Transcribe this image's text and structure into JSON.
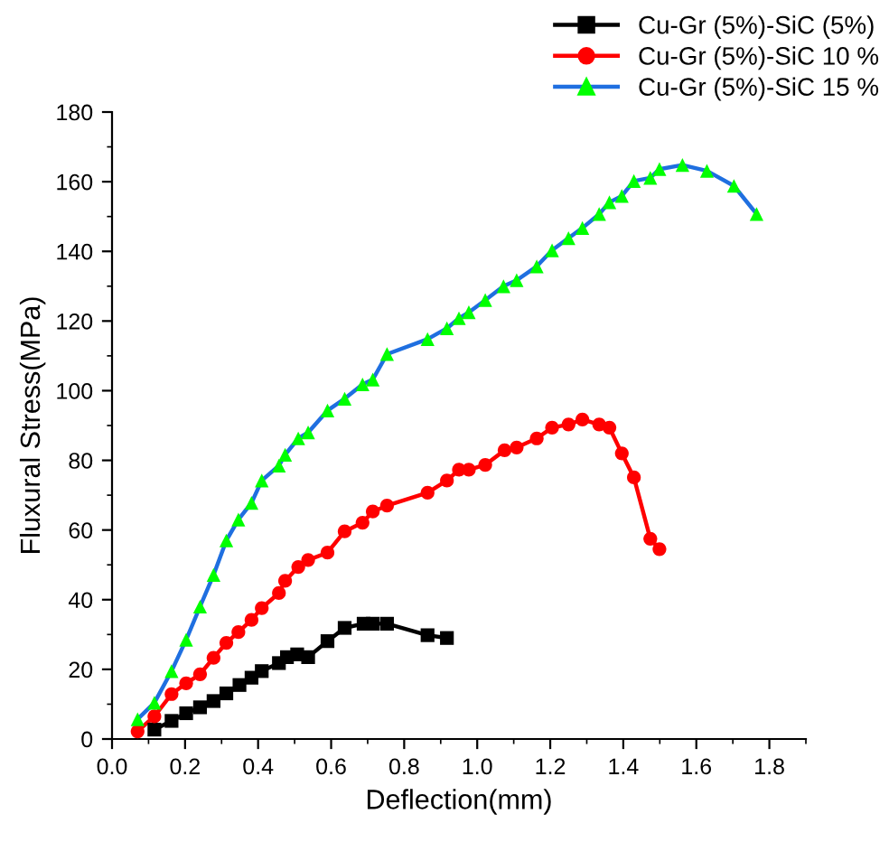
{
  "chart_data": {
    "type": "line",
    "xlabel": "Deflection(mm)",
    "ylabel": "Fluxural Stress(MPa)",
    "xlim": [
      0,
      1.9
    ],
    "xticks": [
      {
        "value": 0,
        "label": "0.0"
      },
      0.2,
      0.4,
      0.6,
      0.8,
      {
        "value": 1,
        "label": "1.0"
      },
      1.2,
      1.4,
      1.6,
      1.8
    ],
    "ylim": [
      0,
      180
    ],
    "yticks": [
      0,
      20,
      40,
      60,
      80,
      100,
      120,
      140,
      160,
      180
    ],
    "grid": false,
    "legend": "top right",
    "line_style": "solid",
    "series": [
      {
        "name": "Cu-Gr (5%)-SiC (5%)",
        "color": "#000000",
        "marker": "square",
        "x": [
          0.116,
          0.163,
          0.203,
          0.241,
          0.278,
          0.313,
          0.349,
          0.382,
          0.41,
          0.457,
          0.479,
          0.507,
          0.537,
          0.59,
          0.637,
          0.689,
          0.714,
          0.753,
          0.864,
          0.917
        ],
        "values": [
          2.7,
          5.2,
          7.4,
          9.1,
          10.9,
          13.1,
          15.5,
          17.6,
          19.5,
          21.8,
          23.5,
          24.3,
          23.5,
          28.1,
          31.9,
          33.1,
          33.1,
          33.1,
          29.8,
          29.0
        ]
      },
      {
        "name": "Cu-Gr (5%)-SiC 10 %",
        "color": "#ff0000",
        "marker": "circle",
        "x": [
          0.07,
          0.116,
          0.163,
          0.203,
          0.241,
          0.278,
          0.313,
          0.346,
          0.382,
          0.41,
          0.457,
          0.474,
          0.51,
          0.537,
          0.59,
          0.637,
          0.686,
          0.714,
          0.753,
          0.864,
          0.917,
          0.95,
          0.977,
          1.022,
          1.075,
          1.108,
          1.163,
          1.205,
          1.25,
          1.288,
          1.334,
          1.362,
          1.396,
          1.429,
          1.474,
          1.499
        ],
        "values": [
          2.2,
          6.5,
          12.9,
          16,
          18.6,
          23.3,
          27.6,
          30.7,
          34.2,
          37.6,
          41.9,
          45.4,
          49.4,
          51.4,
          53.5,
          59.6,
          62.1,
          65.3,
          67,
          70.7,
          74.2,
          77.3,
          77.3,
          78.7,
          82.9,
          83.7,
          86.3,
          89.4,
          90.3,
          91.7,
          90.3,
          89.4,
          82,
          75.1,
          57.5,
          54.5
        ]
      },
      {
        "name": "Cu-Gr (5%)-SiC 15 %",
        "color": "#1f6fe0",
        "marker": "triangle",
        "colors": [
          "#00ff00",
          "#00ff00",
          "#00ff00",
          "#00ff00",
          "#00ff00",
          "#00ff00",
          "#00ff00",
          "#00ff00",
          "#00ff00",
          "#00ff00",
          "#00ff00",
          "#00ff00",
          "#00ff00",
          "#00ff00",
          "#00ff00",
          "#00ff00",
          "#00ff00",
          "#00ff00",
          "#00ff00",
          "#00ff00",
          "#00ff00",
          "#00ff00",
          "#00ff00",
          "#00ff00",
          "#00ff00",
          "#00ff00",
          "#00ff00",
          "#00ff00",
          "#00ff00",
          "#00ff00",
          "#00ff00",
          "#00ff00",
          "#00ff00",
          "#00ff00",
          "#00ff00",
          "#00ff00",
          "#00ff00",
          "#00ff00",
          "#00ff00",
          "#00ff00"
        ],
        "x": [
          0.07,
          0.116,
          0.163,
          0.203,
          0.241,
          0.278,
          0.313,
          0.346,
          0.382,
          0.41,
          0.457,
          0.474,
          0.51,
          0.537,
          0.59,
          0.637,
          0.686,
          0.714,
          0.753,
          0.864,
          0.917,
          0.95,
          0.977,
          1.022,
          1.072,
          1.108,
          1.163,
          1.205,
          1.25,
          1.288,
          1.334,
          1.362,
          1.396,
          1.429,
          1.474,
          1.499,
          1.562,
          1.629,
          1.703,
          1.765
        ],
        "values": [
          5.7,
          10.4,
          19.5,
          28.5,
          38,
          47.1,
          57,
          63,
          67.8,
          74.2,
          78.5,
          81.6,
          86.3,
          88,
          94.3,
          97.7,
          101.8,
          103.2,
          110.5,
          114.8,
          117.9,
          120.8,
          122.5,
          126,
          130,
          131.7,
          135.7,
          140.3,
          143.8,
          146.7,
          150.7,
          154.1,
          155.9,
          160.2,
          161.1,
          163.6,
          164.8,
          163.1,
          158.8,
          150.7
        ]
      }
    ]
  }
}
